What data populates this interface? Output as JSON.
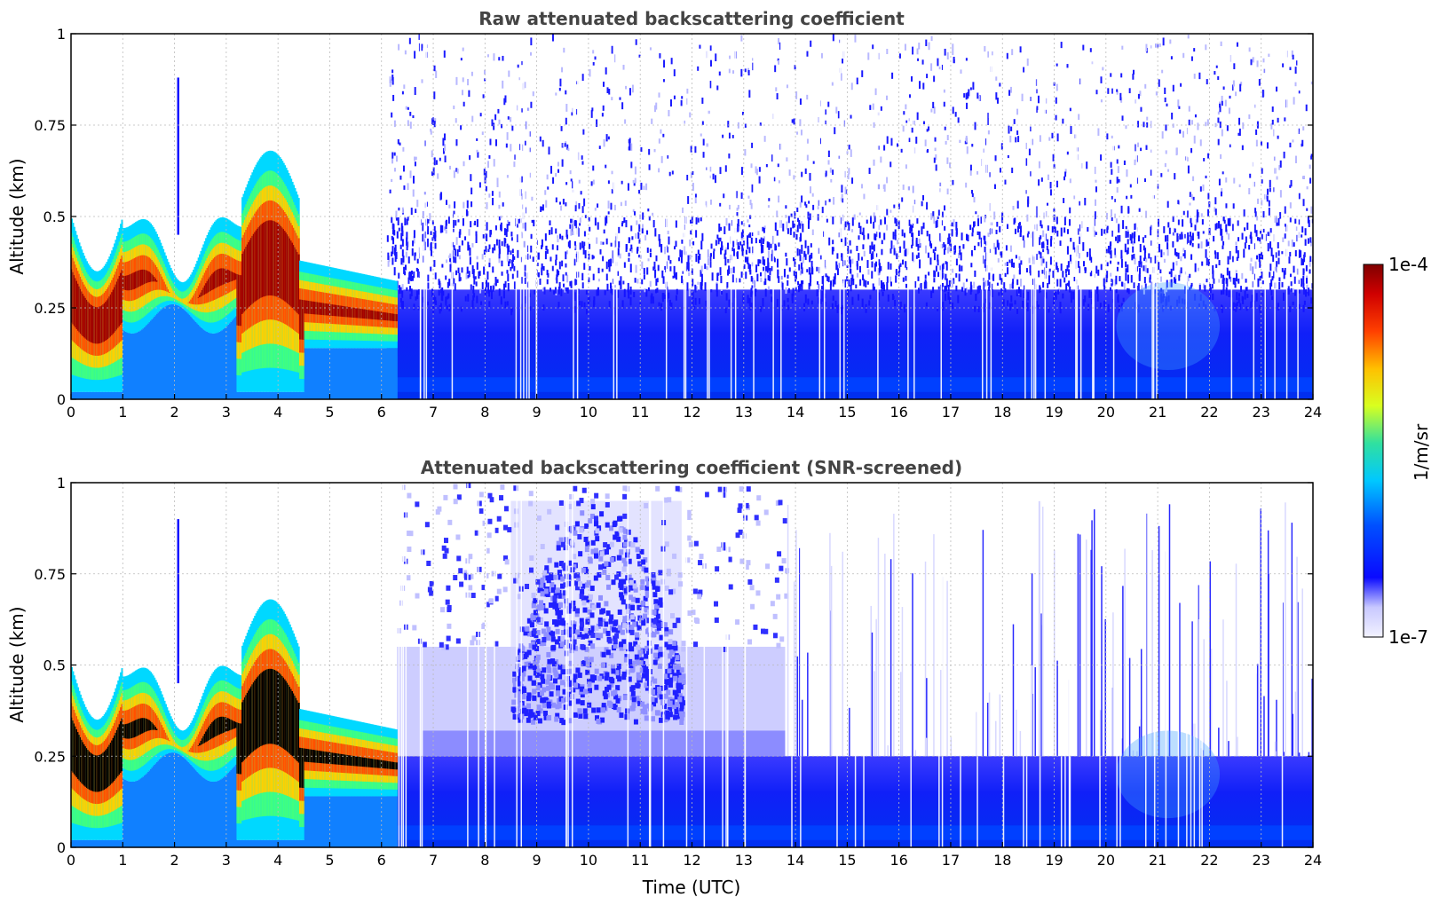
{
  "chart_data": [
    {
      "type": "heatmap",
      "title": "Raw attenuated backscattering coefficient",
      "xlabel": "",
      "ylabel": "Altitude (km)",
      "xlim": [
        0,
        24
      ],
      "ylim": [
        0,
        1
      ],
      "xticks": [
        "0",
        "1",
        "2",
        "3",
        "4",
        "5",
        "6",
        "7",
        "8",
        "9",
        "10",
        "11",
        "12",
        "13",
        "14",
        "15",
        "16",
        "17",
        "18",
        "19",
        "20",
        "21",
        "22",
        "23",
        "24"
      ],
      "yticks": [
        "0",
        "0.25",
        "0.5",
        "0.75",
        "1"
      ],
      "grid": true,
      "features": [
        {
          "name": "fog layer",
          "t_start": 0.0,
          "t_end": 6.3,
          "alt_top_km": 0.55,
          "level": "high"
        },
        {
          "name": "noise background",
          "t_start": 6.1,
          "t_end": 24.0,
          "alt_top_km": 1.0,
          "level": "low"
        },
        {
          "name": "boundary layer",
          "t_start": 6.1,
          "t_end": 24.0,
          "alt_top_km": 0.3,
          "level": "medium-low"
        }
      ]
    },
    {
      "type": "heatmap",
      "title": "Attenuated backscattering coefficient (SNR-screened)",
      "xlabel": "Time (UTC)",
      "ylabel": "Altitude (km)",
      "xlim": [
        0,
        24
      ],
      "ylim": [
        0,
        1
      ],
      "xticks": [
        "0",
        "1",
        "2",
        "3",
        "4",
        "5",
        "6",
        "7",
        "8",
        "9",
        "10",
        "11",
        "12",
        "13",
        "14",
        "15",
        "16",
        "17",
        "18",
        "19",
        "20",
        "21",
        "22",
        "23",
        "24"
      ],
      "yticks": [
        "0",
        "0.25",
        "0.5",
        "0.75",
        "1"
      ],
      "grid": true,
      "features": [
        {
          "name": "fog layer",
          "t_start": 0.0,
          "t_end": 6.3,
          "alt_top_km": 0.55,
          "level": "high"
        },
        {
          "name": "screened plume",
          "t_start": 8.5,
          "t_end": 11.8,
          "alt_top_km": 0.95,
          "level": "low"
        },
        {
          "name": "boundary layer",
          "t_start": 6.1,
          "t_end": 24.0,
          "alt_top_km": 0.25,
          "level": "medium-low"
        }
      ]
    }
  ],
  "colorbar": {
    "label": "1/m/sr",
    "max_label": "1e-4",
    "min_label": "1e-7",
    "min_value": 1e-07,
    "max_value": 0.0001,
    "scale": "log"
  },
  "colors": {
    "title": "#444444",
    "grid": "#bbbbbb"
  }
}
